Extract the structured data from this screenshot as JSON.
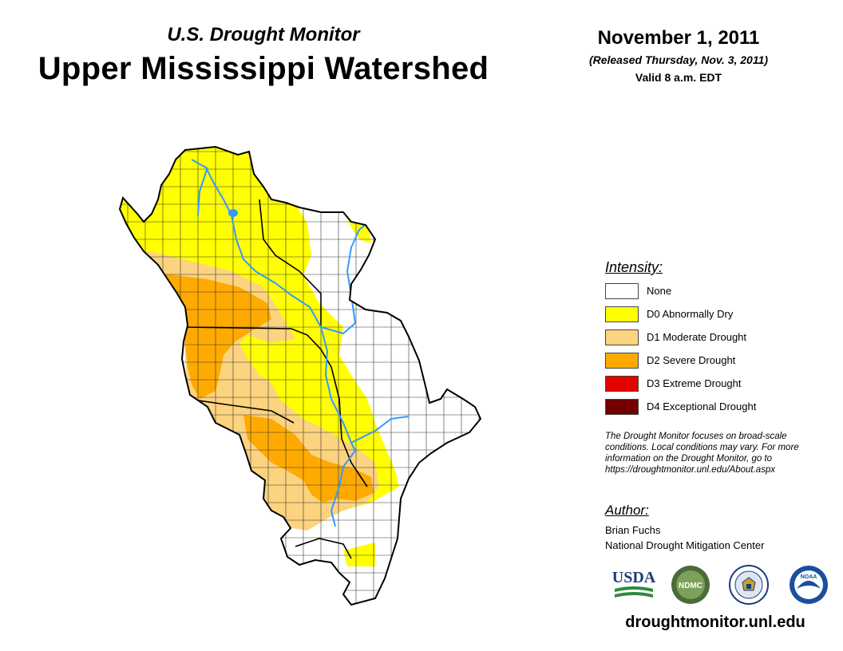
{
  "header": {
    "subtitle": "U.S. Drought Monitor",
    "title": "Upper Mississippi Watershed",
    "date": "November 1, 2011",
    "released": "(Released Thursday, Nov. 3, 2011)",
    "valid": "Valid 8 a.m. EDT"
  },
  "legend": {
    "heading": "Intensity:",
    "items": [
      {
        "label": "None",
        "color": "#ffffff"
      },
      {
        "label": "D0 Abnormally Dry",
        "color": "#ffff00"
      },
      {
        "label": "D1 Moderate Drought",
        "color": "#fcd37f"
      },
      {
        "label": "D2 Severe Drought",
        "color": "#ffaa00"
      },
      {
        "label": "D3 Extreme Drought",
        "color": "#e60000"
      },
      {
        "label": "D4 Exceptional Drought",
        "color": "#730000"
      }
    ]
  },
  "disclaimer": {
    "line1": "The Drought Monitor focuses on broad-scale",
    "line2": "conditions. Local conditions may vary. For more",
    "line3": "information on the Drought Monitor, go to",
    "line4": "https://droughtmonitor.unl.edu/About.aspx"
  },
  "author": {
    "heading": "Author:",
    "name": "Brian Fuchs",
    "org": "National Drought Mitigation Center"
  },
  "logos": {
    "usda": "USDA",
    "ndmc": "NDMC",
    "noaa": "NOAA"
  },
  "footer": {
    "url": "droughtmonitor.unl.edu"
  },
  "colors": {
    "river": "#3399ff",
    "county_border": "#333333",
    "usda_blue": "#1f3b7a",
    "usda_green": "#2e8b3d",
    "ndmc_green": "#4a6b3a",
    "noaa_blue": "#1a4fa0"
  },
  "icons": [
    "usda-logo",
    "ndmc-logo",
    "commerce-seal",
    "noaa-logo"
  ]
}
